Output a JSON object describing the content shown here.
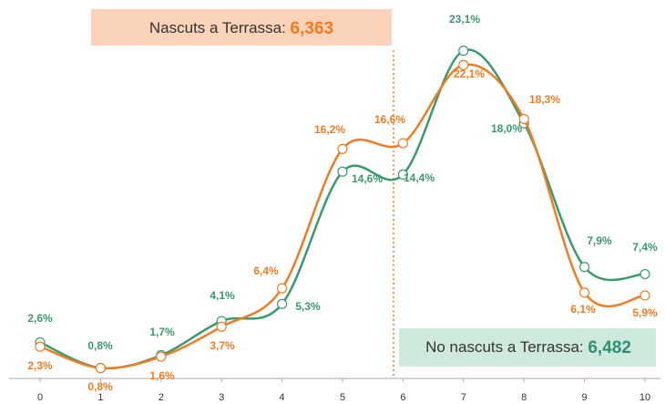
{
  "chart_data": {
    "type": "line",
    "categories": [
      "0",
      "1",
      "2",
      "3",
      "4",
      "5",
      "6",
      "7",
      "8",
      "9",
      "10"
    ],
    "series": [
      {
        "name": "No nascuts a Terrassa",
        "color": "#3a9a6e",
        "values": [
          2.6,
          0.8,
          1.7,
          4.1,
          5.3,
          14.6,
          14.4,
          23.1,
          18.0,
          7.9,
          7.4
        ],
        "value_labels": [
          "2,6%",
          "0,8%",
          "1,7%",
          "4,1%",
          "5,3%",
          "14,6%",
          "14,4%",
          "23,1%",
          "18,0%",
          "7,9%",
          "7,4%"
        ]
      },
      {
        "name": "Nascuts a Terrassa",
        "color": "#f07c22",
        "values": [
          2.3,
          0.8,
          1.6,
          3.7,
          6.4,
          16.2,
          16.6,
          22.1,
          18.3,
          6.1,
          5.9
        ],
        "value_labels": [
          "2,3%",
          "0,8%",
          "1,6%",
          "3,7%",
          "6,4%",
          "16,2%",
          "16,6%",
          "22,1%",
          "18,3%",
          "6,1%",
          "5,9%"
        ]
      }
    ],
    "annotations": [
      {
        "text": "Nascuts a Terrassa:",
        "value": "6,363"
      },
      {
        "text": "No nascuts a Terrassa:",
        "value": "6,482"
      }
    ]
  }
}
